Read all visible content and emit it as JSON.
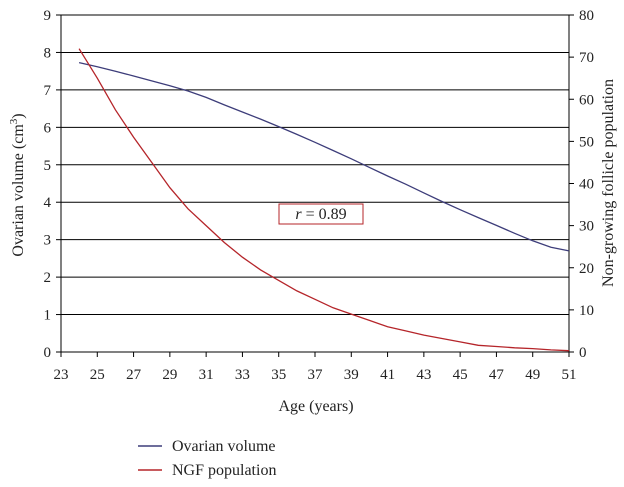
{
  "chart_data": {
    "type": "line",
    "xlabel": "Age (years)",
    "ylabel_left": "Ovarian volume (cm",
    "ylabel_left_sup": "3",
    "ylabel_left_close": ")",
    "ylabel_right": "Non-growing follicle population",
    "xlim": [
      23,
      51
    ],
    "xticks": [
      23,
      25,
      27,
      29,
      31,
      33,
      35,
      37,
      39,
      41,
      43,
      45,
      47,
      49,
      51
    ],
    "ylim_left": [
      0,
      9
    ],
    "yticks_left": [
      0,
      1,
      2,
      3,
      4,
      5,
      6,
      7,
      8,
      9
    ],
    "ylim_right": [
      0,
      80
    ],
    "yticks_right": [
      0,
      10,
      20,
      30,
      40,
      50,
      60,
      70,
      80
    ],
    "grid": "horizontal",
    "legend_position": "bottom-left",
    "annotation": {
      "italic": "r",
      "rest": " = 0.89"
    },
    "series": [
      {
        "name": "Ovarian volume",
        "axis": "left",
        "color": "#3d3d7a",
        "x": [
          24,
          25,
          26,
          27,
          28,
          29,
          30,
          31,
          32,
          33,
          34,
          35,
          36,
          37,
          38,
          39,
          40,
          41,
          42,
          43,
          44,
          45,
          46,
          47,
          48,
          49,
          50,
          51
        ],
        "y": [
          7.73,
          7.62,
          7.5,
          7.37,
          7.24,
          7.11,
          6.97,
          6.8,
          6.6,
          6.41,
          6.22,
          6.02,
          5.81,
          5.6,
          5.38,
          5.16,
          4.93,
          4.7,
          4.48,
          4.25,
          4.02,
          3.8,
          3.59,
          3.38,
          3.17,
          2.97,
          2.8,
          2.7
        ]
      },
      {
        "name": "NGF population",
        "axis": "right",
        "color": "#b5252a",
        "x": [
          24,
          25,
          26,
          27,
          28,
          29,
          30,
          31,
          32,
          33,
          34,
          35,
          36,
          37,
          38,
          39,
          40,
          41,
          42,
          43,
          44,
          45,
          46,
          47,
          48,
          49,
          50,
          51
        ],
        "y": [
          72,
          65,
          57.5,
          51,
          45,
          39,
          34,
          30,
          26,
          22.5,
          19.5,
          17,
          14.5,
          12.5,
          10.5,
          9,
          7.5,
          6,
          5,
          4,
          3.2,
          2.4,
          1.6,
          1.3,
          1,
          0.8,
          0.5,
          0.3
        ]
      }
    ]
  }
}
